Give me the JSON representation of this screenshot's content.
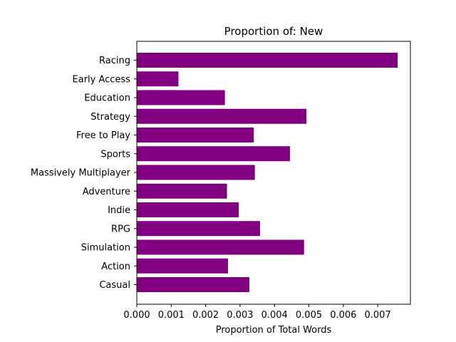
{
  "chart_data": {
    "type": "bar",
    "orientation": "horizontal",
    "title": "Proportion of: New",
    "xlabel": "Proportion of Total Words",
    "ylabel": "",
    "xlim": [
      0,
      0.00795
    ],
    "x_ticks": [
      0.0,
      0.001,
      0.002,
      0.003,
      0.004,
      0.005,
      0.006,
      0.007
    ],
    "x_tick_labels": [
      "0.000",
      "0.001",
      "0.002",
      "0.003",
      "0.004",
      "0.005",
      "0.006",
      "0.007"
    ],
    "grid": false,
    "bar_color": "#800080",
    "categories": [
      "Racing",
      "Early Access",
      "Education",
      "Strategy",
      "Free to Play",
      "Sports",
      "Massively Multiplayer",
      "Adventure",
      "Indie",
      "RPG",
      "Simulation",
      "Action",
      "Casual"
    ],
    "values": [
      0.00758,
      0.00121,
      0.00256,
      0.00493,
      0.0034,
      0.00445,
      0.00343,
      0.00262,
      0.00296,
      0.00358,
      0.00486,
      0.00265,
      0.00327
    ]
  }
}
